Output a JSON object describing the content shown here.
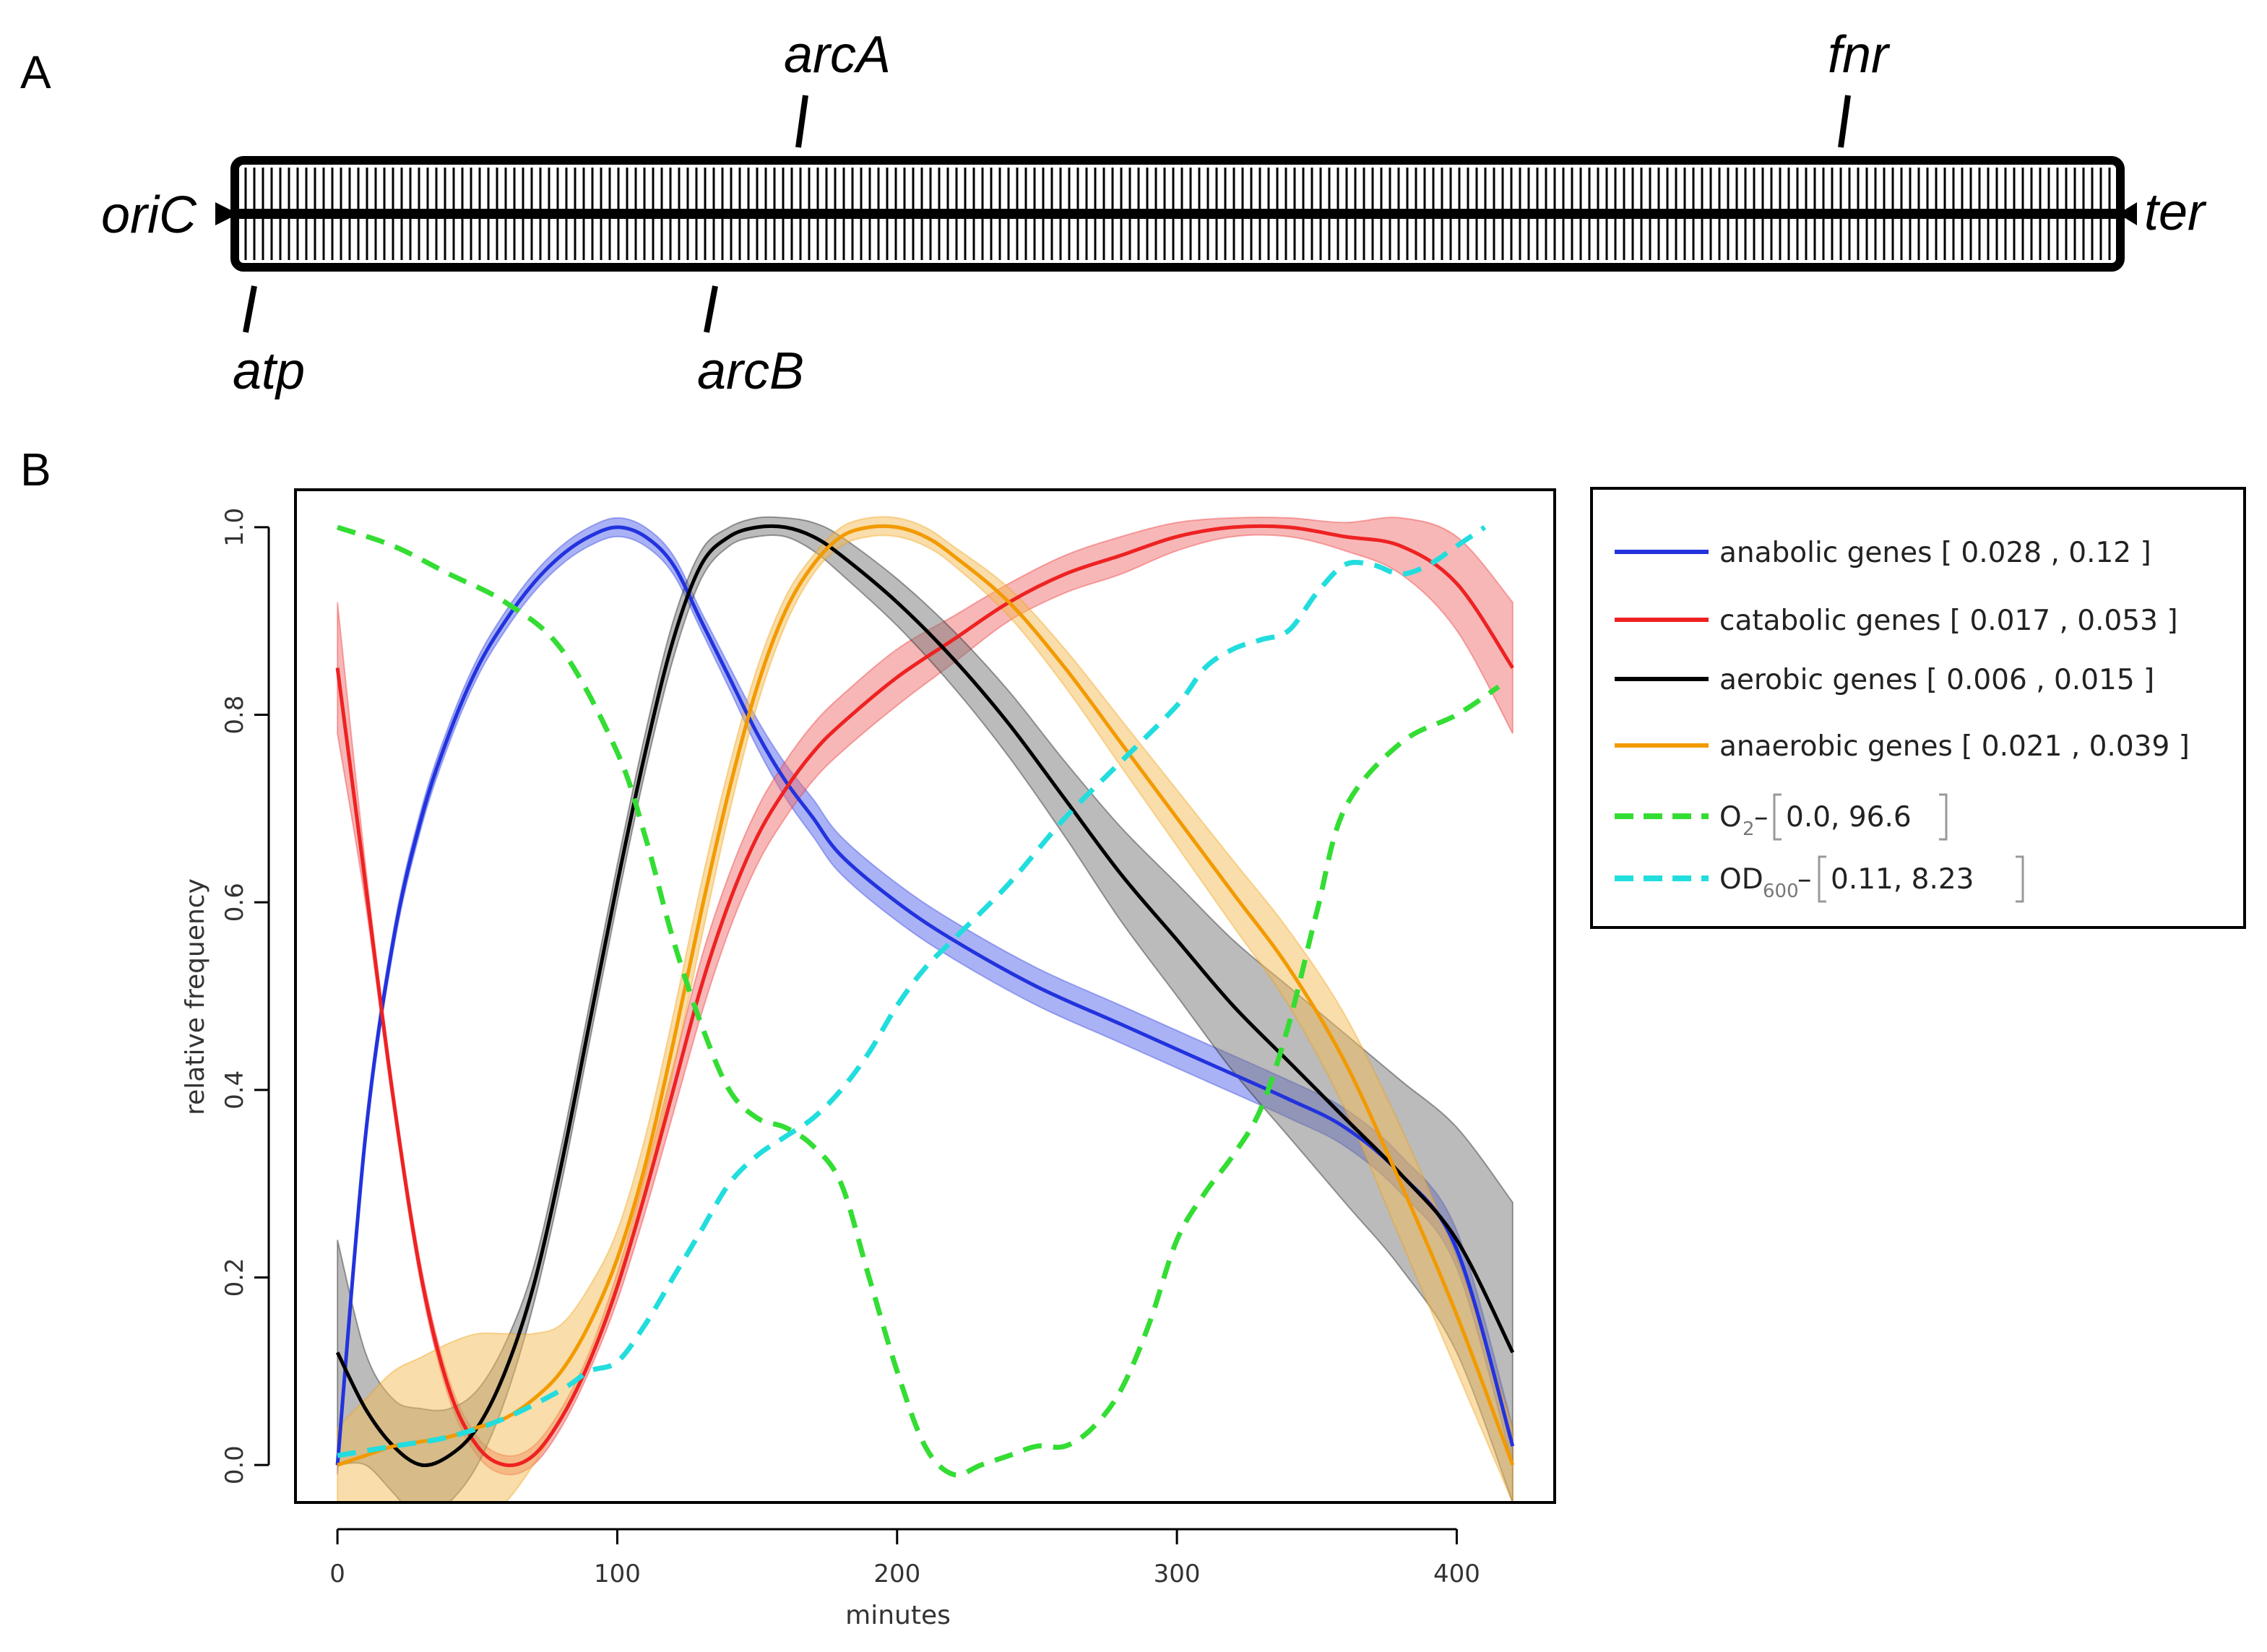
{
  "panel_a": {
    "label": "A",
    "origin_label": "oriC",
    "terminus_label": "ter",
    "genes_top": [
      "arcA",
      "fnr"
    ],
    "genes_bottom": [
      "atp",
      "arcB"
    ]
  },
  "panel_b": {
    "label": "B"
  },
  "chart_data": {
    "type": "line",
    "xlabel": "minutes",
    "ylabel": "relative frequency",
    "xlim": [
      -15,
      435
    ],
    "ylim": [
      -0.04,
      1.04
    ],
    "x_ticks": [
      "0",
      "100",
      "200",
      "300",
      "400"
    ],
    "y_ticks": [
      "0.0",
      "0.2",
      "0.4",
      "0.6",
      "0.8",
      "1.0"
    ],
    "legend_position": "right, outside plot",
    "series": [
      {
        "name": "anabolic genes",
        "legend_label": "anabolic genes [ 0.028 , 0.12 ]",
        "color": "#2233dd",
        "band_color": "#5566ee",
        "dashed": false,
        "x": [
          0,
          10,
          20,
          30,
          40,
          50,
          60,
          70,
          80,
          90,
          100,
          110,
          120,
          130,
          140,
          150,
          160,
          170,
          180,
          200,
          220,
          250,
          280,
          310,
          340,
          360,
          380,
          400,
          420
        ],
        "values": [
          0.0,
          0.35,
          0.56,
          0.69,
          0.78,
          0.85,
          0.9,
          0.94,
          0.97,
          0.99,
          1.0,
          0.99,
          0.96,
          0.9,
          0.84,
          0.78,
          0.73,
          0.69,
          0.65,
          0.6,
          0.56,
          0.51,
          0.47,
          0.43,
          0.39,
          0.36,
          0.31,
          0.23,
          0.02
        ],
        "band": [
          0.01,
          0.01,
          0.01,
          0.01,
          0.01,
          0.01,
          0.01,
          0.01,
          0.01,
          0.01,
          0.01,
          0.01,
          0.01,
          0.01,
          0.012,
          0.015,
          0.018,
          0.02,
          0.02,
          0.02,
          0.02,
          0.02,
          0.02,
          0.02,
          0.02,
          0.02,
          0.02,
          0.02,
          0.02
        ]
      },
      {
        "name": "catabolic genes",
        "legend_label": "catabolic genes [ 0.017 , 0.053 ]",
        "color": "#ee2222",
        "band_color": "#f07070",
        "dashed": false,
        "x": [
          0,
          10,
          20,
          30,
          40,
          50,
          60,
          70,
          80,
          90,
          100,
          110,
          120,
          130,
          140,
          150,
          160,
          170,
          180,
          200,
          220,
          240,
          260,
          280,
          300,
          320,
          340,
          360,
          380,
          400,
          420
        ],
        "values": [
          0.85,
          0.62,
          0.39,
          0.2,
          0.08,
          0.02,
          0.0,
          0.01,
          0.05,
          0.11,
          0.19,
          0.29,
          0.4,
          0.51,
          0.6,
          0.67,
          0.72,
          0.76,
          0.79,
          0.84,
          0.88,
          0.92,
          0.95,
          0.97,
          0.99,
          1.0,
          1.0,
          0.99,
          0.98,
          0.94,
          0.85
        ],
        "band": [
          0.07,
          0.02,
          0.01,
          0.01,
          0.01,
          0.01,
          0.01,
          0.01,
          0.01,
          0.01,
          0.015,
          0.02,
          0.025,
          0.03,
          0.03,
          0.03,
          0.03,
          0.03,
          0.03,
          0.03,
          0.025,
          0.02,
          0.02,
          0.02,
          0.015,
          0.01,
          0.01,
          0.015,
          0.03,
          0.05,
          0.07
        ]
      },
      {
        "name": "aerobic genes",
        "legend_label": "aerobic genes [ 0.006 , 0.015 ]",
        "color": "#000000",
        "band_color": "#777777",
        "dashed": false,
        "x": [
          0,
          10,
          20,
          30,
          40,
          50,
          60,
          70,
          80,
          90,
          100,
          110,
          120,
          130,
          140,
          150,
          160,
          170,
          180,
          200,
          220,
          240,
          260,
          280,
          300,
          320,
          340,
          360,
          380,
          400,
          420
        ],
        "values": [
          0.12,
          0.06,
          0.02,
          0.0,
          0.01,
          0.04,
          0.1,
          0.19,
          0.32,
          0.47,
          0.62,
          0.76,
          0.88,
          0.96,
          0.99,
          1.0,
          1.0,
          0.99,
          0.97,
          0.92,
          0.86,
          0.79,
          0.71,
          0.63,
          0.56,
          0.49,
          0.43,
          0.37,
          0.31,
          0.24,
          0.12
        ],
        "band": [
          0.12,
          0.06,
          0.05,
          0.06,
          0.05,
          0.04,
          0.03,
          0.02,
          0.02,
          0.02,
          0.02,
          0.02,
          0.02,
          0.015,
          0.01,
          0.01,
          0.01,
          0.015,
          0.02,
          0.025,
          0.03,
          0.035,
          0.04,
          0.05,
          0.06,
          0.07,
          0.08,
          0.09,
          0.1,
          0.12,
          0.16
        ]
      },
      {
        "name": "anaerobic genes",
        "legend_label": "anaerobic genes [ 0.021 , 0.039 ]",
        "color": "#f29a00",
        "band_color": "#f4bb55",
        "dashed": false,
        "x": [
          0,
          10,
          20,
          30,
          40,
          50,
          60,
          70,
          80,
          90,
          100,
          110,
          120,
          130,
          140,
          150,
          160,
          170,
          180,
          190,
          200,
          210,
          220,
          240,
          260,
          280,
          300,
          320,
          340,
          360,
          380,
          400,
          420
        ],
        "values": [
          0.0,
          0.01,
          0.02,
          0.025,
          0.03,
          0.04,
          0.05,
          0.07,
          0.1,
          0.15,
          0.22,
          0.32,
          0.45,
          0.59,
          0.72,
          0.83,
          0.91,
          0.96,
          0.99,
          1.0,
          1.0,
          0.99,
          0.97,
          0.92,
          0.85,
          0.77,
          0.69,
          0.61,
          0.53,
          0.43,
          0.3,
          0.16,
          0.0
        ],
        "band": [
          0.04,
          0.06,
          0.08,
          0.09,
          0.1,
          0.1,
          0.09,
          0.07,
          0.05,
          0.04,
          0.03,
          0.03,
          0.03,
          0.03,
          0.025,
          0.02,
          0.015,
          0.01,
          0.01,
          0.01,
          0.01,
          0.01,
          0.01,
          0.015,
          0.02,
          0.025,
          0.03,
          0.035,
          0.04,
          0.05,
          0.06,
          0.06,
          0.04
        ]
      },
      {
        "name": "O2",
        "legend_label_main": "O",
        "legend_label_sub": "2",
        "legend_label_range": "0.0, 96.6",
        "color": "#33dd33",
        "dashed": true,
        "x": [
          0,
          20,
          40,
          60,
          80,
          100,
          110,
          120,
          130,
          140,
          150,
          160,
          170,
          180,
          190,
          200,
          210,
          220,
          230,
          240,
          250,
          260,
          270,
          280,
          290,
          300,
          310,
          320,
          330,
          340,
          350,
          360,
          380,
          400,
          415
        ],
        "values": [
          1.0,
          0.98,
          0.95,
          0.92,
          0.87,
          0.76,
          0.67,
          0.56,
          0.47,
          0.4,
          0.37,
          0.36,
          0.34,
          0.3,
          0.2,
          0.1,
          0.02,
          -0.01,
          0.0,
          0.01,
          0.02,
          0.02,
          0.04,
          0.08,
          0.15,
          0.24,
          0.29,
          0.33,
          0.38,
          0.47,
          0.59,
          0.7,
          0.77,
          0.8,
          0.83
        ]
      },
      {
        "name": "OD600",
        "legend_label_main": "OD",
        "legend_label_sub": "600",
        "legend_label_range": "0.11, 8.23",
        "color": "#22dddd",
        "dashed": true,
        "x": [
          0,
          20,
          40,
          60,
          80,
          90,
          100,
          110,
          120,
          130,
          140,
          150,
          160,
          170,
          180,
          190,
          200,
          210,
          220,
          240,
          260,
          280,
          300,
          310,
          320,
          330,
          340,
          350,
          360,
          370,
          380,
          390,
          400,
          410
        ],
        "values": [
          0.01,
          0.02,
          0.03,
          0.05,
          0.08,
          0.1,
          0.11,
          0.15,
          0.2,
          0.25,
          0.3,
          0.33,
          0.35,
          0.37,
          0.4,
          0.44,
          0.49,
          0.53,
          0.56,
          0.62,
          0.69,
          0.75,
          0.81,
          0.85,
          0.87,
          0.88,
          0.89,
          0.93,
          0.96,
          0.96,
          0.95,
          0.96,
          0.98,
          1.0
        ]
      }
    ]
  }
}
